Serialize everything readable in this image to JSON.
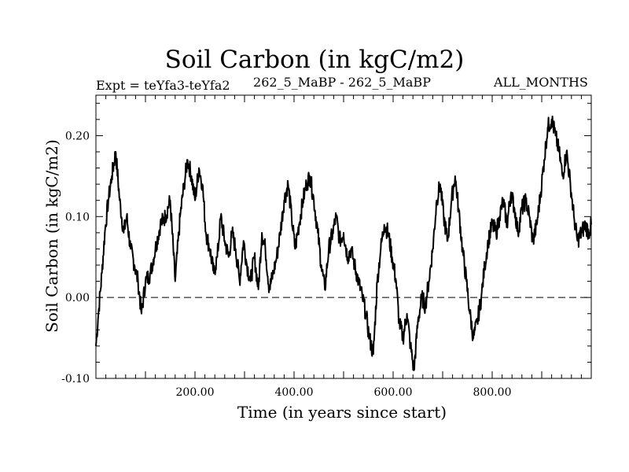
{
  "chart_data": {
    "type": "line",
    "title": "Soil Carbon (in kgC/m2)",
    "subtitle_left": "Expt = teYfa3-teYfa2",
    "subtitle_center": "262_5_MaBP - 262_5_MaBP",
    "subtitle_right": "ALL_MONTHS",
    "xlabel": "Time (in years since start)",
    "ylabel": "Soil Carbon (in kgC/m2)",
    "xlim": [
      0,
      1000
    ],
    "ylim": [
      -0.1,
      0.25
    ],
    "xticks": [
      200,
      400,
      600,
      800
    ],
    "xtick_labels": [
      "200.00",
      "400.00",
      "600.00",
      "800.00"
    ],
    "yticks": [
      -0.1,
      0.0,
      0.1,
      0.2
    ],
    "ytick_labels": [
      "-0.10",
      "0.00",
      "0.10",
      "0.20"
    ],
    "reference_line": {
      "y": 0.0,
      "style": "dashed"
    },
    "series": [
      {
        "name": "Soil Carbon",
        "x": [
          0,
          5,
          12,
          18,
          25,
          32,
          40,
          48,
          56,
          62,
          70,
          78,
          85,
          92,
          100,
          110,
          120,
          130,
          140,
          150,
          160,
          170,
          178,
          185,
          193,
          200,
          208,
          215,
          222,
          230,
          238,
          245,
          252,
          260,
          268,
          275,
          282,
          290,
          298,
          305,
          312,
          320,
          328,
          335,
          342,
          350,
          358,
          365,
          372,
          380,
          388,
          395,
          402,
          410,
          418,
          425,
          432,
          440,
          448,
          455,
          462,
          470,
          478,
          485,
          492,
          500,
          508,
          515,
          522,
          530,
          538,
          545,
          552,
          560,
          568,
          575,
          582,
          590,
          598,
          606,
          612,
          620,
          628,
          635,
          642,
          650,
          658,
          665,
          672,
          680,
          688,
          695,
          702,
          710,
          718,
          725,
          732,
          740,
          748,
          755,
          762,
          770,
          778,
          785,
          792,
          800,
          808,
          815,
          822,
          830,
          838,
          845,
          852,
          860,
          868,
          875,
          882,
          890,
          898,
          905,
          912,
          920,
          928,
          935,
          942,
          950,
          958,
          965,
          972,
          980,
          988,
          995,
          1000
        ],
        "values": [
          -0.06,
          -0.02,
          0.03,
          0.08,
          0.12,
          0.15,
          0.18,
          0.12,
          0.08,
          0.1,
          0.06,
          0.04,
          0.02,
          -0.02,
          0.02,
          0.03,
          0.06,
          0.09,
          0.1,
          0.12,
          0.02,
          0.1,
          0.14,
          0.17,
          0.15,
          0.12,
          0.16,
          0.14,
          0.08,
          0.06,
          0.03,
          0.05,
          0.1,
          0.07,
          0.05,
          0.08,
          0.06,
          0.02,
          0.07,
          0.04,
          0.02,
          0.05,
          0.01,
          0.08,
          0.06,
          0.01,
          0.03,
          0.05,
          0.08,
          0.12,
          0.14,
          0.1,
          0.06,
          0.09,
          0.12,
          0.14,
          0.15,
          0.12,
          0.08,
          0.04,
          0.01,
          0.06,
          0.08,
          0.1,
          0.07,
          0.08,
          0.05,
          0.06,
          0.04,
          0.02,
          0.0,
          -0.02,
          -0.05,
          -0.07,
          0.02,
          0.06,
          0.09,
          0.08,
          0.05,
          0.02,
          -0.03,
          -0.05,
          -0.02,
          -0.06,
          -0.09,
          -0.03,
          0.0,
          -0.01,
          0.02,
          0.06,
          0.12,
          0.14,
          0.1,
          0.07,
          0.12,
          0.15,
          0.11,
          0.06,
          0.02,
          -0.02,
          -0.05,
          -0.03,
          0.0,
          0.04,
          0.07,
          0.09,
          0.08,
          0.1,
          0.12,
          0.09,
          0.13,
          0.11,
          0.08,
          0.11,
          0.12,
          0.1,
          0.07,
          0.09,
          0.13,
          0.17,
          0.21,
          0.22,
          0.2,
          0.18,
          0.15,
          0.18,
          0.14,
          0.1,
          0.07,
          0.08,
          0.09,
          0.08,
          0.09
        ]
      }
    ]
  }
}
